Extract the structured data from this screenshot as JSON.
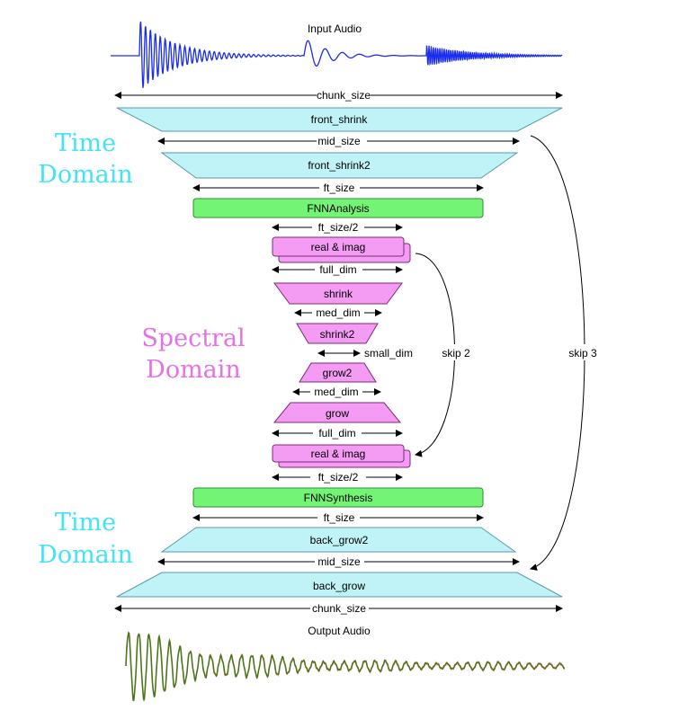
{
  "input_audio_label": "Input Audio",
  "output_audio_label": "Output Audio",
  "domains": {
    "time_top": [
      "Time",
      "Domain"
    ],
    "spectral": [
      "Spectral",
      "Domain"
    ],
    "time_bottom": [
      "Time",
      "Domain"
    ]
  },
  "blocks": {
    "front_shrink": "front_shrink",
    "front_shrink2": "front_shrink2",
    "fnn_analysis": "FNNAnalysis",
    "real_imag_top": "real & imag",
    "shrink": "shrink",
    "shrink2": "shrink2",
    "grow2": "grow2",
    "grow": "grow",
    "real_imag_bottom": "real & imag",
    "fnn_synthesis": "FNNSynthesis",
    "back_grow2": "back_grow2",
    "back_grow": "back_grow"
  },
  "dims": {
    "chunk_size_top": "chunk_size",
    "mid_size_top": "mid_size",
    "ft_size_top": "ft_size",
    "ft_size_half_top": "ft_size/2",
    "full_dim_top": "full_dim",
    "med_dim_top": "med_dim",
    "small_dim": "small_dim",
    "med_dim_bottom": "med_dim",
    "full_dim_bottom": "full_dim",
    "ft_size_half_bottom": "ft_size/2",
    "ft_size_bottom": "ft_size",
    "mid_size_bottom": "mid_size",
    "chunk_size_bottom": "chunk_size"
  },
  "skips": {
    "skip2": "skip 2",
    "skip3": "skip 3"
  },
  "colors": {
    "time_block": "#bff3f8",
    "fnn_block": "#74f474",
    "spectral_block": "#f49cf4",
    "time_text": "#40e4f4",
    "spectral_text": "#e472e4",
    "input_wave": "#1a2cf0",
    "output_wave": "#2a8a1a"
  }
}
